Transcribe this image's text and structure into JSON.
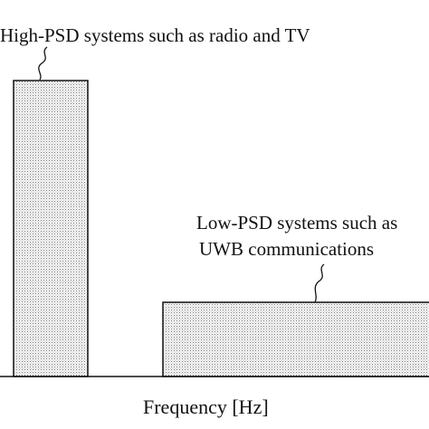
{
  "high_psd_label": "High-PSD systems such as radio and TV",
  "low_psd_label_line1": "Low-PSD systems such as",
  "low_psd_label_line2": "UWB communications",
  "x_axis_label": "Frequency [Hz]"
}
